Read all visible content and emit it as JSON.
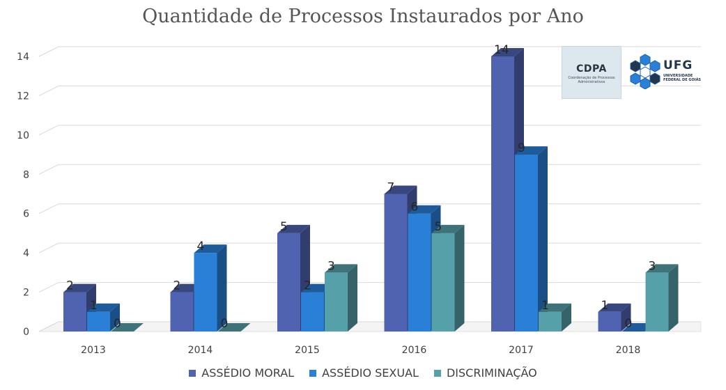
{
  "chart_data": {
    "type": "bar",
    "title": "Quantidade de Processos Instaurados por Ano",
    "categories": [
      "2013",
      "2014",
      "2015",
      "2016",
      "2017",
      "2018"
    ],
    "series": [
      {
        "name": "ASSÉDIO MORAL",
        "color": "#4F63B0",
        "values": [
          2,
          2,
          5,
          7,
          14,
          1
        ]
      },
      {
        "name": "ASSÉDIO SEXUAL",
        "color": "#2A7FD6",
        "values": [
          1,
          4,
          2,
          6,
          9,
          0
        ]
      },
      {
        "name": "DISCRIMINAÇÃO",
        "color": "#56A0AA",
        "values": [
          0,
          0,
          3,
          5,
          1,
          3
        ]
      }
    ],
    "ylim": [
      0,
      14
    ],
    "yticks": [
      "0",
      "2",
      "4",
      "6",
      "8",
      "10",
      "12",
      "14"
    ],
    "xlabel": "",
    "ylabel": "",
    "grid": true,
    "bar_style": "3d",
    "legend_position": "bottom",
    "data_labels": true
  },
  "logos": {
    "cdpa_text": "CDPA",
    "cdpa_subtext": "Coordenação de Processos Administrativos",
    "ufg_text": "UFG",
    "ufg_subtext": "UNIVERSIDADE FEDERAL DE GOIÁS"
  }
}
